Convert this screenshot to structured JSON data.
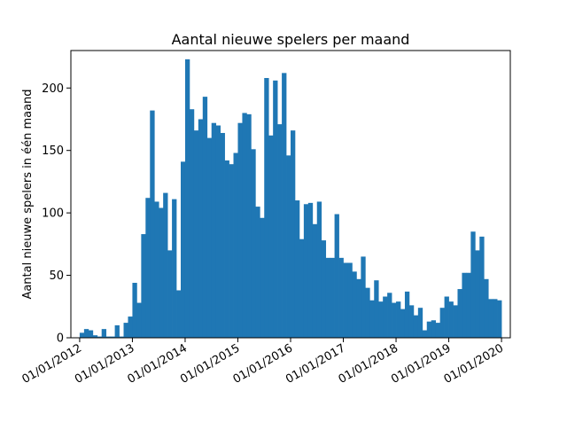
{
  "chart_data": {
    "type": "bar",
    "title": "Aantal nieuwe spelers per maand",
    "xlabel": "",
    "ylabel": "Aantal nieuwe spelers in één maand",
    "ylim": [
      0,
      230
    ],
    "yticks": [
      0,
      50,
      100,
      150,
      200
    ],
    "xticks": [
      "01/01/2012",
      "01/01/2013",
      "01/01/2014",
      "01/01/2015",
      "01/01/2016",
      "01/01/2017",
      "01/01/2018",
      "01/01/2019",
      "01/01/2020"
    ],
    "xlim": [
      "2011-11",
      "2020-03"
    ],
    "bar_color": "#1f77b4",
    "grid": false,
    "x": [
      "2012-01",
      "2012-02",
      "2012-03",
      "2012-04",
      "2012-05",
      "2012-06",
      "2012-07",
      "2012-08",
      "2012-09",
      "2012-10",
      "2012-11",
      "2012-12",
      "2013-01",
      "2013-02",
      "2013-03",
      "2013-04",
      "2013-05",
      "2013-06",
      "2013-07",
      "2013-08",
      "2013-09",
      "2013-10",
      "2013-11",
      "2013-12",
      "2014-01",
      "2014-02",
      "2014-03",
      "2014-04",
      "2014-05",
      "2014-06",
      "2014-07",
      "2014-08",
      "2014-09",
      "2014-10",
      "2014-11",
      "2014-12",
      "2015-01",
      "2015-02",
      "2015-03",
      "2015-04",
      "2015-05",
      "2015-06",
      "2015-07",
      "2015-08",
      "2015-09",
      "2015-10",
      "2015-11",
      "2015-12",
      "2016-01",
      "2016-02",
      "2016-03",
      "2016-04",
      "2016-05",
      "2016-06",
      "2016-07",
      "2016-08",
      "2016-09",
      "2016-10",
      "2016-11",
      "2016-12",
      "2017-01",
      "2017-02",
      "2017-03",
      "2017-04",
      "2017-05",
      "2017-06",
      "2017-07",
      "2017-08",
      "2017-09",
      "2017-10",
      "2017-11",
      "2017-12",
      "2018-01",
      "2018-02",
      "2018-03",
      "2018-04",
      "2018-05",
      "2018-06",
      "2018-07",
      "2018-08",
      "2018-09",
      "2018-10",
      "2018-11",
      "2018-12",
      "2019-01",
      "2019-02",
      "2019-03",
      "2019-04",
      "2019-05",
      "2019-06",
      "2019-07",
      "2019-08",
      "2019-09",
      "2019-10",
      "2019-11",
      "2019-12"
    ],
    "values": [
      4,
      7,
      6,
      2,
      1,
      7,
      1,
      1,
      10,
      1,
      12,
      17,
      44,
      28,
      83,
      112,
      182,
      109,
      104,
      116,
      70,
      111,
      38,
      141,
      223,
      183,
      166,
      175,
      193,
      160,
      172,
      170,
      164,
      142,
      139,
      148,
      172,
      180,
      179,
      151,
      105,
      96,
      208,
      162,
      206,
      171,
      212,
      146,
      166,
      110,
      79,
      107,
      108,
      91,
      109,
      78,
      64,
      64,
      99,
      64,
      60,
      60,
      53,
      47,
      65,
      40,
      30,
      46,
      29,
      33,
      36,
      28,
      29,
      23,
      37,
      26,
      18,
      24,
      6,
      13,
      14,
      12,
      24,
      33,
      29,
      26,
      39,
      52,
      52,
      85,
      70,
      81,
      47,
      31,
      31,
      30
    ]
  }
}
